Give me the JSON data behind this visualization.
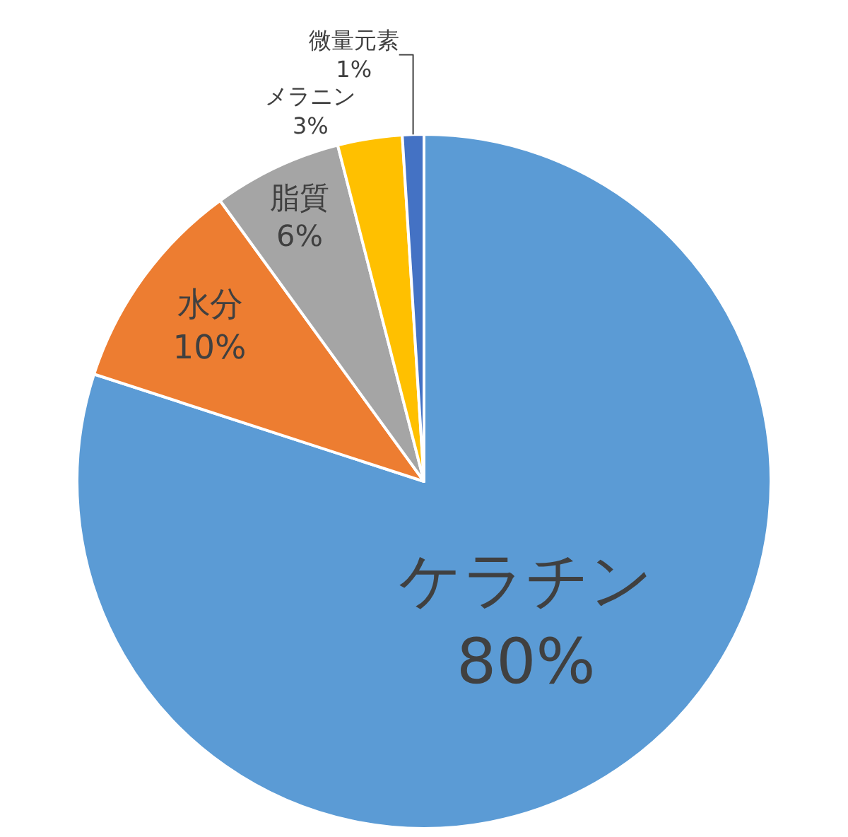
{
  "chart_data": {
    "type": "pie",
    "categories": [
      "ケラチン",
      "水分",
      "脂質",
      "メラニン",
      "微量元素"
    ],
    "values": [
      80,
      10,
      6,
      3,
      1
    ],
    "colors": [
      "#5b9bd5",
      "#ed7d31",
      "#a5a5a5",
      "#ffc000",
      "#4472c4"
    ],
    "value_labels": [
      "80%",
      "10%",
      "6%",
      "3%",
      "1%"
    ],
    "legend": false
  }
}
